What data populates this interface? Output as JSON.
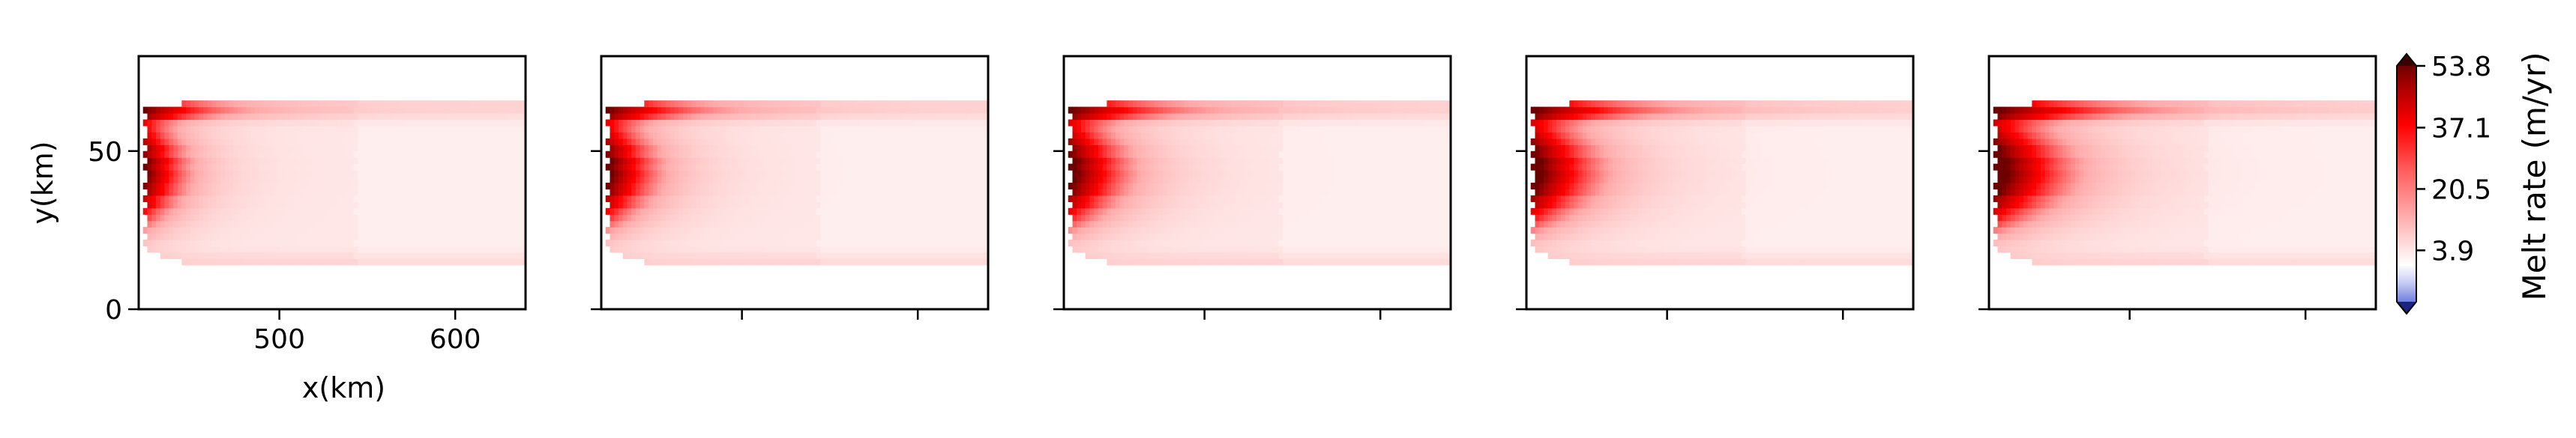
{
  "chart_data": {
    "type": "heatmap",
    "panels": [
      {
        "index": 1,
        "show_x_ticklabels": true,
        "show_y_ticklabels": true
      },
      {
        "index": 2,
        "show_x_ticklabels": false,
        "show_y_ticklabels": false
      },
      {
        "index": 3,
        "show_x_ticklabels": false,
        "show_y_ticklabels": false
      },
      {
        "index": 4,
        "show_x_ticklabels": false,
        "show_y_ticklabels": false
      },
      {
        "index": 5,
        "show_x_ticklabels": false,
        "show_y_ticklabels": false
      }
    ],
    "xlabel": "x(km)",
    "ylabel": "y(km)",
    "xlim": [
      420,
      640
    ],
    "ylim": [
      0,
      80
    ],
    "xticks": [
      500,
      600
    ],
    "xtick_labels": [
      "500",
      "600"
    ],
    "yticks": [
      0,
      50
    ],
    "ytick_labels": [
      "0",
      "50"
    ],
    "colorbar": {
      "label": "Melt rate (m/yr)",
      "vmin": -10,
      "vmax": 53.8,
      "ticks": [
        53.8,
        37.1,
        20.5,
        3.9
      ],
      "tick_labels": [
        "53.8",
        "37.1",
        "20.5",
        "3.9"
      ],
      "colormap": "seismic-upper",
      "colors": {
        "low": "#3b4cc0",
        "zero": "#ffffff",
        "mid": "#ff0000",
        "high": "#800000"
      },
      "extend": "both"
    },
    "field_features": {
      "cavity_x_range": [
        420,
        640
      ],
      "cavity_y_range": [
        12,
        68
      ],
      "max_melt_location_x": 425,
      "max_melt_location_y": 45
    }
  }
}
